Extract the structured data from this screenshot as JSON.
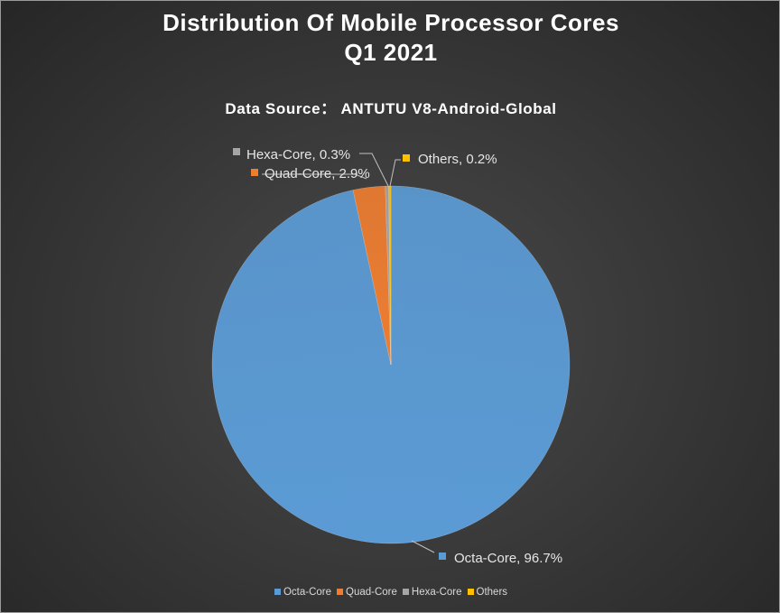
{
  "chart_data": {
    "type": "pie",
    "title_lines": [
      "Distribution Of Mobile Processor Cores",
      "Q1 2021"
    ],
    "subtitle": "Data Source： ANTUTU V8-Android-Global",
    "categories": [
      "Octa-Core",
      "Quad-Core",
      "Hexa-Core",
      "Others"
    ],
    "values": [
      96.7,
      2.9,
      0.3,
      0.2
    ],
    "unit": "%",
    "data_labels": [
      "Octa-Core, 96.7%",
      "Quad-Core, 2.9%",
      "Hexa-Core, 0.3%",
      "Others, 0.2%"
    ],
    "colors": [
      "#5b9bd5",
      "#ed7d31",
      "#a5a5a5",
      "#ffc000"
    ],
    "legend_position": "bottom",
    "start_angle": "12 o'clock",
    "direction": "clockwise"
  }
}
